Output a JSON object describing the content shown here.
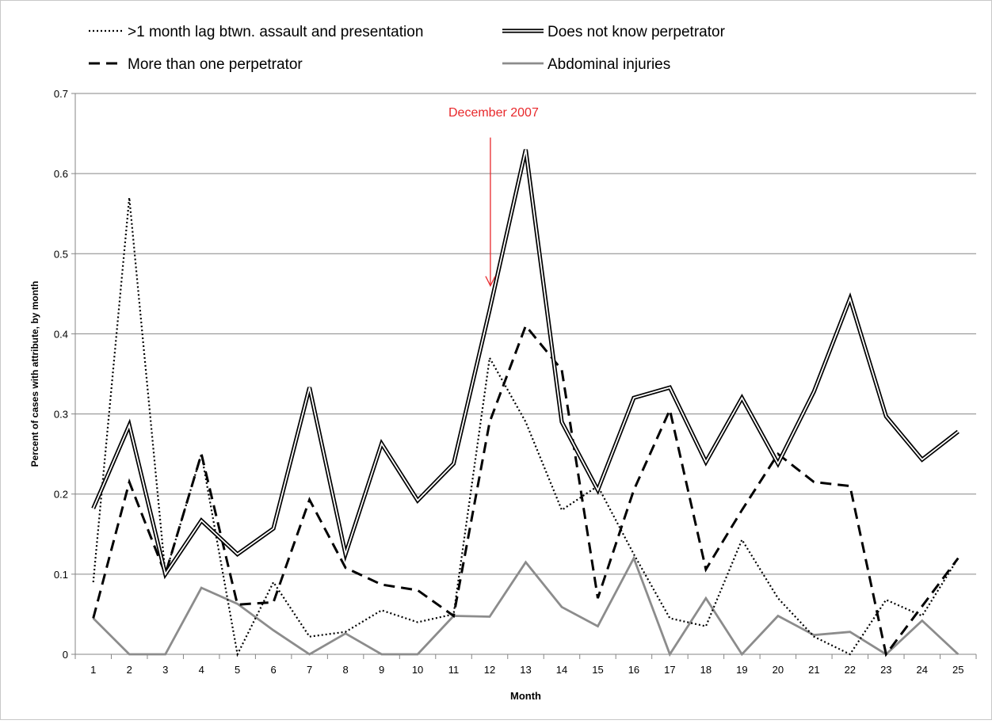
{
  "chart_data": {
    "type": "line",
    "title": "",
    "xlabel": "Month",
    "ylabel": "Percent of cases with attribute, by month",
    "ylim": [
      0,
      0.7
    ],
    "yticks": [
      "0",
      "0.1",
      "0.2",
      "0.3",
      "0.4",
      "0.5",
      "0.6",
      "0.7"
    ],
    "x": [
      1,
      2,
      3,
      4,
      5,
      6,
      7,
      8,
      9,
      10,
      11,
      12,
      13,
      14,
      15,
      16,
      17,
      18,
      19,
      20,
      21,
      22,
      23,
      24,
      25
    ],
    "grid": "horizontal",
    "legend_placement": "top",
    "series": [
      {
        "name": ">1 month lag btwn. assault and presentation",
        "style": "dotted",
        "color": "#000000",
        "values": [
          0.09,
          0.57,
          0.1,
          0.25,
          0.0,
          0.09,
          0.022,
          0.028,
          0.055,
          0.04,
          0.05,
          0.37,
          0.29,
          0.18,
          0.21,
          0.125,
          0.045,
          0.035,
          0.143,
          0.07,
          0.022,
          0.0,
          0.068,
          0.048,
          0.12
        ]
      },
      {
        "name": "Does not know perpetrator",
        "style": "double",
        "color": "#000000",
        "values": [
          0.182,
          0.286,
          0.1,
          0.167,
          0.125,
          0.157,
          0.333,
          0.125,
          0.263,
          0.192,
          0.238,
          0.43,
          0.63,
          0.29,
          0.205,
          0.32,
          0.333,
          0.24,
          0.32,
          0.238,
          0.328,
          0.444,
          0.297,
          0.243,
          0.278
        ]
      },
      {
        "name": "More than one perpetrator",
        "style": "dashed",
        "color": "#000000",
        "values": [
          0.045,
          0.215,
          0.1,
          0.25,
          0.062,
          0.065,
          0.193,
          0.108,
          0.087,
          0.08,
          0.048,
          0.29,
          0.41,
          0.355,
          0.07,
          0.205,
          0.305,
          0.106,
          0.18,
          0.25,
          0.215,
          0.21,
          0.0,
          0.06,
          0.12
        ]
      },
      {
        "name": "Abdominal injuries",
        "style": "solid",
        "color": "#8c8c8c",
        "values": [
          0.045,
          0.0,
          0.0,
          0.083,
          0.063,
          0.03,
          0.0,
          0.026,
          0.0,
          0.0,
          0.048,
          0.047,
          0.115,
          0.059,
          0.035,
          0.12,
          0.0,
          0.07,
          0.0,
          0.048,
          0.024,
          0.028,
          0.0,
          0.042,
          0.0
        ]
      }
    ],
    "annotations": [
      {
        "text": "December 2007",
        "color": "#e8282b",
        "x": 12.02,
        "y_from": 0.645,
        "y_to": 0.46
      }
    ]
  }
}
